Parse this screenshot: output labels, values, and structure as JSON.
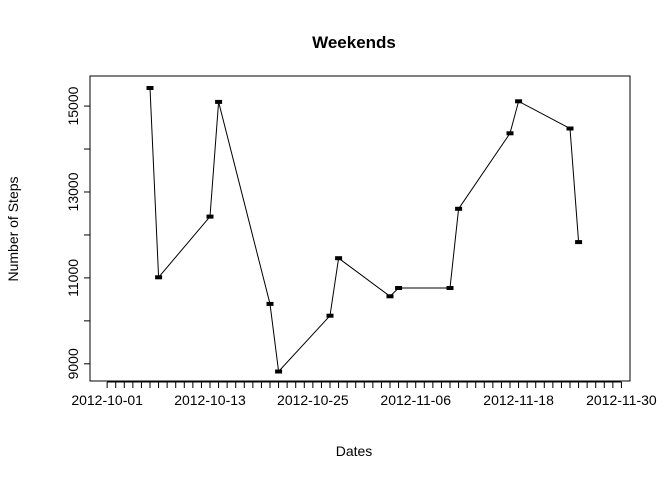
{
  "chart_data": {
    "type": "line",
    "title": "Weekends",
    "xlabel": "Dates",
    "ylabel": "Number of Steps",
    "xlim": [
      "2012-09-29",
      "2012-12-01"
    ],
    "ylim": [
      8600,
      15700
    ],
    "x_tick_labels": [
      "2012-10-01",
      "2012-10-13",
      "2012-10-25",
      "2012-11-06",
      "2012-11-18",
      "2012-11-30"
    ],
    "y_tick_labels": [
      9000,
      11000,
      13000,
      15000
    ],
    "x_minor_ticks_every_days": 1,
    "grid": false,
    "series": [
      {
        "x": [
          "2012-10-06",
          "2012-10-07",
          "2012-10-13",
          "2012-10-14",
          "2012-10-20",
          "2012-10-21",
          "2012-10-27",
          "2012-10-28",
          "2012-11-03",
          "2012-11-04",
          "2012-11-10",
          "2012-11-11",
          "2012-11-17",
          "2012-11-18",
          "2012-11-24",
          "2012-11-25"
        ],
        "y": [
          15420,
          11015,
          12426,
          15098,
          10395,
          8821,
          10119,
          11458,
          10571,
          10765,
          10765,
          12608,
          14366,
          15110,
          14478,
          11834
        ]
      }
    ]
  }
}
